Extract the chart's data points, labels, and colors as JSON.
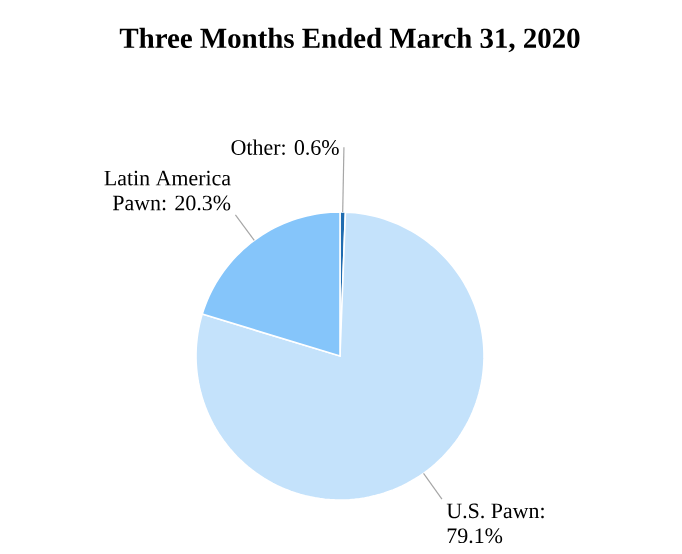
{
  "chart_data": {
    "type": "pie",
    "title": "Three Months Ended March 31, 2020",
    "categories": [
      "Other",
      "U.S. Pawn",
      "Latin America Pawn"
    ],
    "values": [
      0.6,
      79.1,
      20.3
    ],
    "value_labels": [
      ": 0.6%",
      ": 79.1%",
      ": 20.3%"
    ],
    "colors": [
      "#1f6cb0",
      "#c4e2fb",
      "#85c5fa"
    ]
  }
}
